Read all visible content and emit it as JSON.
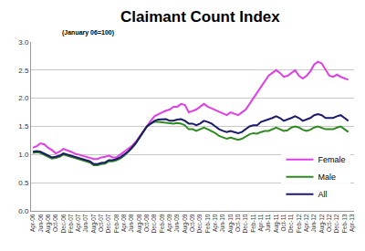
{
  "chart_data": {
    "type": "line",
    "title": "Claimant Count Index",
    "subtitle": "(January 06=100)",
    "categories": [
      "Apr-06",
      null,
      "Jun-06",
      null,
      "Aug-06",
      null,
      "Oct-06",
      null,
      "Dec-06",
      null,
      "Feb-07",
      null,
      "Apr-07",
      null,
      "Jun-07",
      null,
      "Aug-07",
      null,
      "Oct-07",
      null,
      "Dec-07",
      null,
      "Feb-08",
      null,
      "Apr-08",
      null,
      "Jun-08",
      null,
      "Aug-08",
      null,
      "Oct-08",
      null,
      "Dec-08",
      null,
      "Feb-09",
      null,
      "Apr-09",
      null,
      "Jun-09",
      null,
      "Aug-09",
      null,
      "Oct-09",
      null,
      "Dec-09",
      null,
      "Feb-10",
      null,
      "Apr-10",
      null,
      "Jun-10",
      null,
      "Aug-10",
      null,
      "Oct-10",
      null,
      "Dec-10",
      null,
      "Feb-11",
      null,
      "Apr-11",
      null,
      "Jun-11",
      null,
      "Aug-11",
      null,
      "Oct-11",
      null,
      "Dec-11",
      null,
      "Feb-12",
      null,
      "Apr-12",
      null,
      "Jun-12",
      null,
      "Aug-12",
      null,
      "Oct-12",
      null,
      "Dec-12",
      null,
      "Feb-13",
      null,
      "Apr-13"
    ],
    "series": [
      {
        "name": "Female",
        "color": "#e03ee6",
        "values": [
          1.12,
          1.15,
          1.2,
          1.18,
          1.12,
          1.08,
          1.02,
          1.05,
          1.1,
          1.08,
          1.05,
          1.02,
          1.0,
          0.98,
          0.96,
          0.95,
          0.92,
          0.92,
          0.95,
          0.96,
          0.98,
          0.95,
          0.95,
          1.0,
          1.05,
          1.1,
          1.15,
          1.22,
          1.32,
          1.42,
          1.5,
          1.6,
          1.68,
          1.72,
          1.75,
          1.78,
          1.8,
          1.85,
          1.85,
          1.9,
          1.88,
          1.75,
          1.78,
          1.8,
          1.85,
          1.9,
          1.85,
          1.82,
          1.78,
          1.75,
          1.72,
          1.7,
          1.75,
          1.72,
          1.7,
          1.75,
          1.8,
          1.9,
          2.0,
          2.1,
          2.2,
          2.3,
          2.4,
          2.45,
          2.5,
          2.45,
          2.38,
          2.4,
          2.45,
          2.5,
          2.4,
          2.35,
          2.4,
          2.48,
          2.6,
          2.65,
          2.62,
          2.5,
          2.4,
          2.38,
          2.42,
          2.38,
          2.35,
          2.33,
          null
        ]
      },
      {
        "name": "Male",
        "color": "#2e8b1e",
        "values": [
          1.03,
          1.04,
          1.03,
          1.0,
          0.96,
          0.93,
          0.94,
          0.96,
          1.0,
          0.98,
          0.97,
          0.95,
          0.93,
          0.9,
          0.88,
          0.86,
          0.81,
          0.81,
          0.83,
          0.84,
          0.88,
          0.88,
          0.9,
          0.93,
          0.98,
          1.04,
          1.11,
          1.19,
          1.29,
          1.39,
          1.5,
          1.55,
          1.58,
          1.58,
          1.57,
          1.57,
          1.55,
          1.55,
          1.56,
          1.55,
          1.52,
          1.45,
          1.45,
          1.42,
          1.45,
          1.48,
          1.45,
          1.42,
          1.38,
          1.33,
          1.3,
          1.28,
          1.3,
          1.28,
          1.26,
          1.28,
          1.32,
          1.36,
          1.38,
          1.37,
          1.4,
          1.42,
          1.42,
          1.45,
          1.48,
          1.45,
          1.42,
          1.43,
          1.48,
          1.5,
          1.48,
          1.44,
          1.42,
          1.44,
          1.48,
          1.5,
          1.48,
          1.45,
          1.45,
          1.45,
          1.48,
          1.5,
          1.45,
          1.4,
          null
        ]
      },
      {
        "name": "All",
        "color": "#1b1a6b",
        "values": [
          1.05,
          1.06,
          1.05,
          1.02,
          0.98,
          0.95,
          0.96,
          0.98,
          1.02,
          1.0,
          0.99,
          0.97,
          0.95,
          0.92,
          0.9,
          0.88,
          0.83,
          0.83,
          0.85,
          0.86,
          0.9,
          0.9,
          0.92,
          0.95,
          1.0,
          1.05,
          1.12,
          1.2,
          1.3,
          1.4,
          1.5,
          1.55,
          1.6,
          1.62,
          1.62,
          1.63,
          1.6,
          1.6,
          1.62,
          1.63,
          1.6,
          1.55,
          1.55,
          1.52,
          1.55,
          1.6,
          1.58,
          1.55,
          1.5,
          1.45,
          1.42,
          1.4,
          1.42,
          1.4,
          1.38,
          1.4,
          1.45,
          1.5,
          1.52,
          1.52,
          1.58,
          1.6,
          1.62,
          1.65,
          1.68,
          1.65,
          1.6,
          1.62,
          1.65,
          1.68,
          1.65,
          1.6,
          1.62,
          1.65,
          1.7,
          1.72,
          1.7,
          1.65,
          1.65,
          1.65,
          1.68,
          1.7,
          1.65,
          1.6,
          null
        ]
      }
    ],
    "ylim": [
      0,
      3
    ],
    "yticks": [
      {
        "value": 0,
        "label": "0.0"
      },
      0.5,
      {
        "value": 1,
        "label": "1.0"
      },
      1.5,
      {
        "value": 2,
        "label": "2.0"
      },
      2.5,
      {
        "value": 3,
        "label": "3.0"
      }
    ],
    "grid": true,
    "legend": "bottom right"
  }
}
